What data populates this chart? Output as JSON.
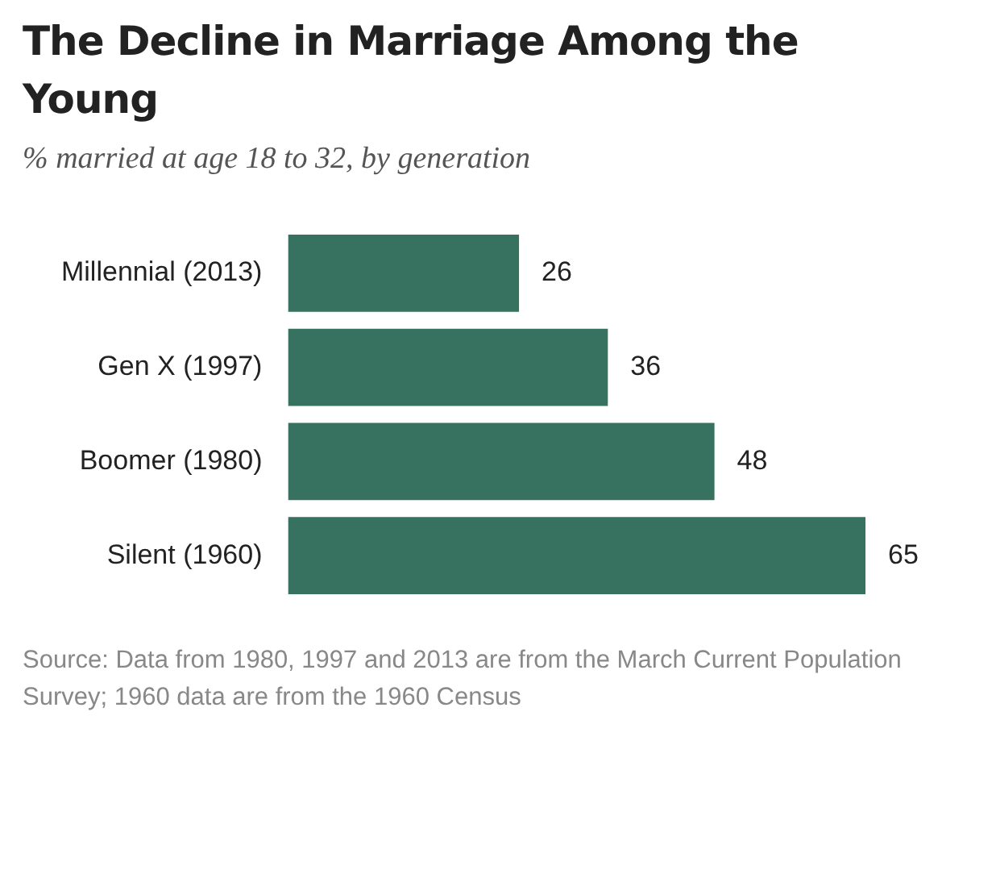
{
  "chart_data": {
    "type": "bar",
    "orientation": "horizontal",
    "title": "The Decline in Marriage Among the Young",
    "subtitle": "% married at age 18 to 32, by generation",
    "categories": [
      "Millennial (2013)",
      "Gen X (1997)",
      "Boomer (1980)",
      "Silent (1960)"
    ],
    "values": [
      26,
      36,
      48,
      65
    ],
    "color": "#37715f",
    "data_labels": true,
    "tick_labels": "y",
    "annotations": [
      "Source: Data from 1980, 1997 and 2013 are from the March Current Population Survey; 1960 data are from the 1960 Census"
    ]
  }
}
